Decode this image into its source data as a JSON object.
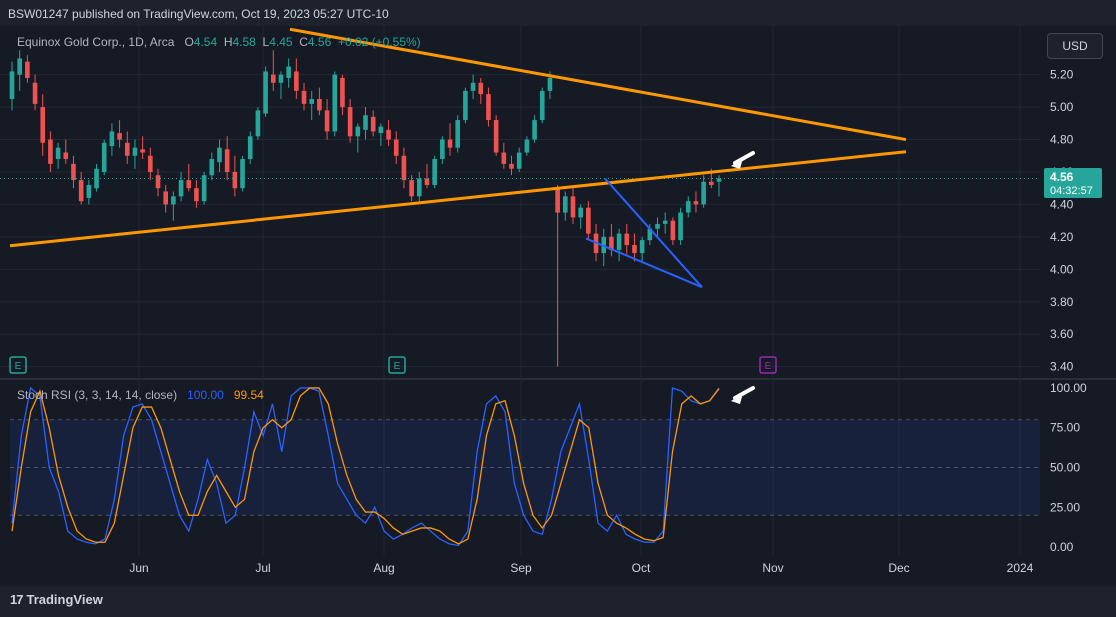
{
  "header": {
    "published": "BSW01247 published on TradingView.com, Oct 19, 2023 05:27 UTC-10"
  },
  "legend": {
    "symbol": "Equinox Gold Corp., 1D, Arca",
    "open_label": "O",
    "open": "4.54",
    "high_label": "H",
    "high": "4.58",
    "low_label": "L",
    "low": "4.45",
    "close_label": "C",
    "close": "4.56",
    "change": "+0.02 (+0.55%)"
  },
  "currency_button": "USD",
  "price_tag": {
    "price": "4.56",
    "countdown": "04:32:57"
  },
  "stoch_legend": {
    "label": "Stoch RSI (3, 3, 14, 14, close)",
    "k": "100.00",
    "d": "99.54"
  },
  "footer": {
    "brand": "TradingView"
  },
  "colors": {
    "up": "#26a69a",
    "down": "#ef5350",
    "trendline": "#ff9800",
    "wedge": "#2962ff",
    "k_line": "#2962ff",
    "d_line": "#ff9800",
    "earnings": "#26a69a",
    "earnings_future": "#9c27b0"
  },
  "chart_data": [
    {
      "type": "candlestick",
      "y_ticks": [
        "5.20",
        "5.00",
        "4.80",
        "4.60",
        "4.40",
        "4.20",
        "4.00",
        "3.80",
        "3.60",
        "3.40"
      ],
      "ylim": [
        3.33,
        5.5
      ],
      "x_ticks": [
        "Jun",
        "Jul",
        "Aug",
        "Sep",
        "Oct",
        "Nov",
        "Dec",
        "2024"
      ],
      "current_price": 4.56,
      "candles": [
        [
          5.05,
          5.28,
          4.98,
          5.22
        ],
        [
          5.2,
          5.35,
          5.1,
          5.3
        ],
        [
          5.28,
          5.32,
          5.15,
          5.18
        ],
        [
          5.15,
          5.2,
          4.98,
          5.02
        ],
        [
          5.0,
          5.08,
          4.7,
          4.78
        ],
        [
          4.8,
          4.85,
          4.6,
          4.65
        ],
        [
          4.68,
          4.78,
          4.62,
          4.75
        ],
        [
          4.72,
          4.8,
          4.65,
          4.68
        ],
        [
          4.65,
          4.7,
          4.5,
          4.55
        ],
        [
          4.55,
          4.6,
          4.4,
          4.42
        ],
        [
          4.44,
          4.55,
          4.4,
          4.52
        ],
        [
          4.5,
          4.65,
          4.48,
          4.62
        ],
        [
          4.6,
          4.8,
          4.58,
          4.78
        ],
        [
          4.76,
          4.9,
          4.7,
          4.85
        ],
        [
          4.84,
          4.92,
          4.75,
          4.8
        ],
        [
          4.78,
          4.85,
          4.65,
          4.7
        ],
        [
          4.7,
          4.8,
          4.62,
          4.75
        ],
        [
          4.74,
          4.82,
          4.68,
          4.72
        ],
        [
          4.7,
          4.75,
          4.55,
          4.6
        ],
        [
          4.58,
          4.62,
          4.45,
          4.5
        ],
        [
          4.48,
          4.52,
          4.35,
          4.4
        ],
        [
          4.4,
          4.48,
          4.3,
          4.45
        ],
        [
          4.45,
          4.6,
          4.42,
          4.55
        ],
        [
          4.55,
          4.65,
          4.48,
          4.5
        ],
        [
          4.5,
          4.55,
          4.38,
          4.42
        ],
        [
          4.42,
          4.6,
          4.4,
          4.58
        ],
        [
          4.58,
          4.72,
          4.55,
          4.68
        ],
        [
          4.66,
          4.8,
          4.6,
          4.75
        ],
        [
          4.74,
          4.82,
          4.55,
          4.6
        ],
        [
          4.6,
          4.7,
          4.45,
          4.5
        ],
        [
          4.5,
          4.7,
          4.48,
          4.68
        ],
        [
          4.68,
          4.85,
          4.65,
          4.82
        ],
        [
          4.82,
          5.0,
          4.8,
          4.98
        ],
        [
          4.96,
          5.25,
          4.94,
          5.22
        ],
        [
          5.2,
          5.35,
          5.1,
          5.15
        ],
        [
          5.15,
          5.22,
          5.05,
          5.2
        ],
        [
          5.18,
          5.3,
          5.12,
          5.25
        ],
        [
          5.22,
          5.3,
          5.05,
          5.1
        ],
        [
          5.1,
          5.15,
          4.98,
          5.02
        ],
        [
          5.02,
          5.1,
          4.92,
          5.05
        ],
        [
          5.05,
          5.12,
          4.95,
          4.98
        ],
        [
          4.98,
          5.05,
          4.8,
          4.85
        ],
        [
          4.85,
          5.22,
          4.82,
          5.2
        ],
        [
          5.18,
          5.2,
          4.95,
          5.0
        ],
        [
          5.0,
          5.05,
          4.78,
          4.82
        ],
        [
          4.82,
          4.9,
          4.72,
          4.88
        ],
        [
          4.86,
          5.0,
          4.8,
          4.95
        ],
        [
          4.94,
          4.98,
          4.82,
          4.85
        ],
        [
          4.84,
          4.9,
          4.76,
          4.88
        ],
        [
          4.86,
          4.92,
          4.76,
          4.8
        ],
        [
          4.8,
          4.85,
          4.65,
          4.7
        ],
        [
          4.7,
          4.75,
          4.5,
          4.55
        ],
        [
          4.55,
          4.58,
          4.42,
          4.45
        ],
        [
          4.45,
          4.6,
          4.42,
          4.56
        ],
        [
          4.56,
          4.65,
          4.5,
          4.52
        ],
        [
          4.52,
          4.7,
          4.5,
          4.68
        ],
        [
          4.68,
          4.82,
          4.65,
          4.8
        ],
        [
          4.8,
          4.9,
          4.7,
          4.75
        ],
        [
          4.75,
          4.95,
          4.72,
          4.92
        ],
        [
          4.92,
          5.12,
          4.9,
          5.1
        ],
        [
          5.1,
          5.2,
          5.05,
          5.15
        ],
        [
          5.15,
          5.18,
          5.02,
          5.08
        ],
        [
          5.08,
          5.12,
          4.88,
          4.92
        ],
        [
          4.92,
          4.95,
          4.7,
          4.72
        ],
        [
          4.72,
          4.78,
          4.62,
          4.65
        ],
        [
          4.65,
          4.7,
          4.58,
          4.62
        ],
        [
          4.62,
          4.75,
          4.6,
          4.72
        ],
        [
          4.72,
          4.82,
          4.7,
          4.8
        ],
        [
          4.8,
          4.95,
          4.78,
          4.92
        ],
        [
          4.92,
          5.12,
          4.9,
          5.1
        ],
        [
          5.1,
          5.22,
          5.05,
          5.18
        ],
        [
          4.5,
          4.52,
          3.4,
          4.35
        ],
        [
          4.35,
          4.48,
          4.3,
          4.45
        ],
        [
          4.45,
          4.5,
          4.28,
          4.32
        ],
        [
          4.32,
          4.4,
          4.25,
          4.38
        ],
        [
          4.38,
          4.42,
          4.18,
          4.22
        ],
        [
          4.22,
          4.28,
          4.05,
          4.1
        ],
        [
          4.1,
          4.25,
          4.02,
          4.2
        ],
        [
          4.2,
          4.28,
          4.08,
          4.12
        ],
        [
          4.12,
          4.25,
          4.05,
          4.22
        ],
        [
          4.22,
          4.28,
          4.08,
          4.15
        ],
        [
          4.15,
          4.22,
          4.05,
          4.1
        ],
        [
          4.1,
          4.2,
          4.05,
          4.18
        ],
        [
          4.18,
          4.28,
          4.15,
          4.25
        ],
        [
          4.25,
          4.32,
          4.2,
          4.28
        ],
        [
          4.28,
          4.35,
          4.22,
          4.3
        ],
        [
          4.3,
          4.32,
          4.15,
          4.18
        ],
        [
          4.18,
          4.38,
          4.15,
          4.35
        ],
        [
          4.35,
          4.45,
          4.32,
          4.42
        ],
        [
          4.42,
          4.48,
          4.35,
          4.4
        ],
        [
          4.4,
          4.58,
          4.38,
          4.54
        ],
        [
          4.54,
          4.62,
          4.5,
          4.52
        ],
        [
          4.54,
          4.58,
          4.45,
          4.56
        ]
      ]
    },
    {
      "type": "line",
      "title": "Stoch RSI (3, 3, 14, 14, close)",
      "y_ticks": [
        "100.00",
        "75.00",
        "50.00",
        "25.00",
        "0.00"
      ],
      "ylim": [
        -5,
        105
      ],
      "bands": [
        20,
        50,
        80
      ],
      "series": [
        {
          "name": "K",
          "values": [
            15,
            70,
            100,
            95,
            50,
            35,
            10,
            5,
            3,
            2,
            5,
            30,
            70,
            88,
            90,
            80,
            60,
            40,
            20,
            10,
            30,
            55,
            40,
            15,
            20,
            50,
            85,
            70,
            90,
            60,
            95,
            100,
            100,
            98,
            70,
            40,
            30,
            20,
            15,
            25,
            10,
            5,
            8,
            12,
            15,
            10,
            5,
            2,
            1,
            10,
            60,
            90,
            95,
            85,
            40,
            20,
            10,
            8,
            30,
            60,
            75,
            90,
            55,
            15,
            10,
            20,
            8,
            5,
            3,
            3,
            10,
            100,
            98,
            92,
            90,
            92,
            100
          ]
        },
        {
          "name": "D",
          "values": [
            10,
            50,
            85,
            98,
            75,
            45,
            25,
            10,
            5,
            3,
            3,
            15,
            45,
            75,
            88,
            88,
            75,
            55,
            35,
            20,
            20,
            35,
            45,
            35,
            25,
            30,
            60,
            75,
            80,
            75,
            80,
            95,
            100,
            100,
            90,
            65,
            45,
            30,
            22,
            22,
            18,
            12,
            8,
            10,
            12,
            12,
            10,
            5,
            2,
            5,
            30,
            70,
            90,
            92,
            70,
            40,
            20,
            12,
            20,
            40,
            60,
            80,
            75,
            40,
            20,
            15,
            12,
            8,
            5,
            4,
            6,
            60,
            90,
            95,
            90,
            92,
            99.54
          ]
        }
      ]
    }
  ],
  "earnings_marker": "E"
}
